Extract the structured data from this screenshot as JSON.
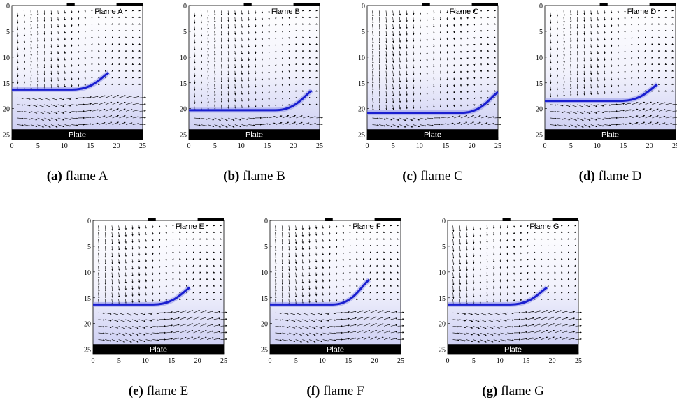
{
  "axes": {
    "xticks": [
      0,
      5,
      10,
      15,
      20,
      25
    ],
    "yticks": [
      0,
      5,
      10,
      15,
      20,
      25
    ],
    "xlim": [
      0,
      25
    ],
    "ylim": [
      0,
      26
    ]
  },
  "panels": [
    {
      "caption_letter": "(a)",
      "caption_text": "flame A",
      "flame_label": "Flame A",
      "plate_label": "Plate",
      "flame_front": {
        "base_y": 16.3,
        "tip_x": 18.5,
        "tip_y": 13
      }
    },
    {
      "caption_letter": "(b)",
      "caption_text": "flame B",
      "flame_label": "Flame B",
      "plate_label": "Plate",
      "flame_front": {
        "base_y": 20.3,
        "tip_x": 23.5,
        "tip_y": 16.5
      }
    },
    {
      "caption_letter": "(c)",
      "caption_text": "flame C",
      "flame_label": "Flame C",
      "plate_label": "Plate",
      "flame_front": {
        "base_y": 20.8,
        "tip_x": 25,
        "tip_y": 16.8
      }
    },
    {
      "caption_letter": "(d)",
      "caption_text": "flame D",
      "flame_label": "Flame D",
      "plate_label": "Plate",
      "flame_front": {
        "base_y": 18.5,
        "tip_x": 21.5,
        "tip_y": 15.3
      }
    },
    {
      "caption_letter": "(e)",
      "caption_text": "flame E",
      "flame_label": "Flame E",
      "plate_label": "Plate",
      "flame_front": {
        "base_y": 16.3,
        "tip_x": 18.5,
        "tip_y": 13
      }
    },
    {
      "caption_letter": "(f)",
      "caption_text": "flame F",
      "flame_label": "Flame F",
      "plate_label": "Plate",
      "flame_front": {
        "base_y": 16.3,
        "tip_x": 19,
        "tip_y": 11.5
      }
    },
    {
      "caption_letter": "(g)",
      "caption_text": "flame G",
      "flame_label": "Flame G",
      "plate_label": "Plate",
      "flame_front": {
        "base_y": 16.3,
        "tip_x": 19,
        "tip_y": 13
      }
    }
  ]
}
